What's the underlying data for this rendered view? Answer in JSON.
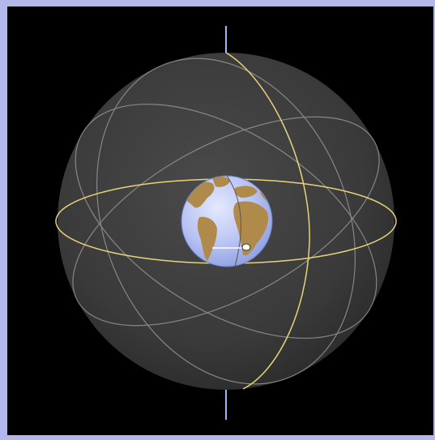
{
  "diagram": {
    "description_elements": [
      "celestial-sphere",
      "earth-globe",
      "celestial-equator",
      "meridian",
      "celestial-axis",
      "observer-marker"
    ],
    "colors": {
      "frame": "#b3b8ea",
      "background": "#000000",
      "sphere": "#3a3a3a",
      "sphere_grid": "#9a9a9a",
      "equator": "#e8d27a",
      "meridian": "#e8d27a",
      "axis": "#9fb6ff",
      "ocean": "#aab8ee",
      "land": "#b08a4a",
      "marker": "#ffffff"
    }
  }
}
